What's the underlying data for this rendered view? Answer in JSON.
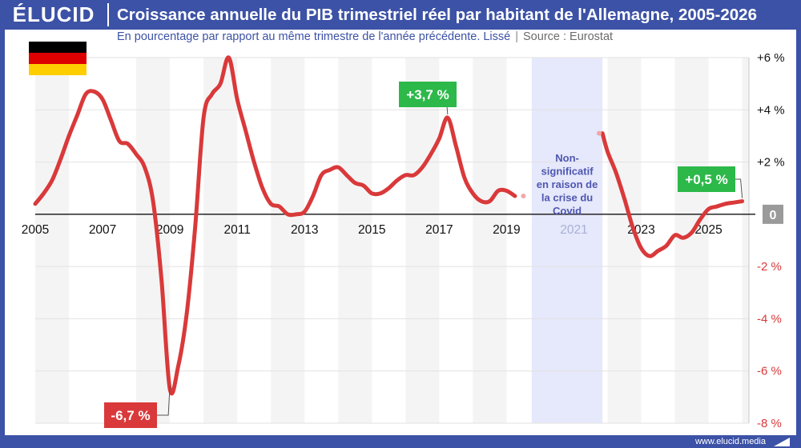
{
  "header": {
    "logo": "ÉLUCID",
    "title": "Croissance annuelle du PIB trimestriel réel par habitant de l'Allemagne, 2005-2026",
    "subtitle": "En pourcentage par rapport au même trimestre de l'année précédente. Lissé",
    "separator": "|",
    "source": "Source : Eurostat"
  },
  "flag": {
    "colors": [
      "#000000",
      "#dd0000",
      "#ffce00"
    ]
  },
  "footer": {
    "url": "www.elucid.media"
  },
  "colors": {
    "line": "#d9393a",
    "positive_label": "#2db84a",
    "negative_label": "#d9393a",
    "zero_label": "#9a9a9a",
    "covid_band": "#e6e8fb",
    "brand": "#3c52a6"
  },
  "chart_data": {
    "type": "line",
    "title": "Croissance annuelle du PIB trimestriel réel par habitant de l'Allemagne, 2005-2026",
    "xlabel": "",
    "ylabel": "",
    "xlim": [
      2005.0,
      2026.2
    ],
    "ylim": [
      -8,
      6
    ],
    "x_ticks": [
      "2005",
      "2007",
      "2009",
      "2011",
      "2013",
      "2015",
      "2017",
      "2019",
      "2021",
      "2023",
      "2025"
    ],
    "y_ticks": [
      {
        "value": 6,
        "label": "+6 %"
      },
      {
        "value": 4,
        "label": "+4 %"
      },
      {
        "value": 2,
        "label": "+2 %"
      },
      {
        "value": 0,
        "label": "0"
      },
      {
        "value": -2,
        "label": "-2 %"
      },
      {
        "value": -4,
        "label": "-4 %"
      },
      {
        "value": -6,
        "label": "-6 %"
      },
      {
        "value": -8,
        "label": "-8 %"
      }
    ],
    "grid": true,
    "alternating_year_bands": true,
    "series": [
      {
        "segments": [
          [
            [
              2005.0,
              0.4
            ],
            [
              2005.25,
              0.8
            ],
            [
              2005.5,
              1.3
            ],
            [
              2005.75,
              2.1
            ],
            [
              2006.0,
              3.0
            ],
            [
              2006.25,
              3.8
            ],
            [
              2006.5,
              4.6
            ],
            [
              2006.75,
              4.7
            ],
            [
              2007.0,
              4.4
            ],
            [
              2007.25,
              3.6
            ],
            [
              2007.5,
              2.8
            ],
            [
              2007.75,
              2.7
            ],
            [
              2008.0,
              2.3
            ],
            [
              2008.25,
              1.8
            ],
            [
              2008.5,
              0.5
            ],
            [
              2008.75,
              -2.5
            ],
            [
              2009.0,
              -6.7
            ],
            [
              2009.25,
              -5.8
            ],
            [
              2009.5,
              -3.8
            ],
            [
              2009.75,
              -0.5
            ],
            [
              2010.0,
              3.7
            ],
            [
              2010.25,
              4.6
            ],
            [
              2010.5,
              5.0
            ],
            [
              2010.75,
              6.0
            ],
            [
              2011.0,
              4.4
            ],
            [
              2011.25,
              3.2
            ],
            [
              2011.5,
              2.0
            ],
            [
              2011.75,
              1.0
            ],
            [
              2012.0,
              0.4
            ],
            [
              2012.25,
              0.3
            ],
            [
              2012.5,
              0.0
            ],
            [
              2012.75,
              0.0
            ],
            [
              2013.0,
              0.1
            ],
            [
              2013.25,
              0.7
            ],
            [
              2013.5,
              1.5
            ],
            [
              2013.75,
              1.7
            ],
            [
              2014.0,
              1.8
            ],
            [
              2014.25,
              1.5
            ],
            [
              2014.5,
              1.2
            ],
            [
              2014.75,
              1.1
            ],
            [
              2015.0,
              0.8
            ],
            [
              2015.25,
              0.8
            ],
            [
              2015.5,
              1.0
            ],
            [
              2015.75,
              1.3
            ],
            [
              2016.0,
              1.5
            ],
            [
              2016.25,
              1.5
            ],
            [
              2016.5,
              1.8
            ],
            [
              2016.75,
              2.3
            ],
            [
              2017.0,
              2.9
            ],
            [
              2017.25,
              3.7
            ],
            [
              2017.5,
              2.6
            ],
            [
              2017.75,
              1.4
            ],
            [
              2018.0,
              0.8
            ],
            [
              2018.25,
              0.5
            ],
            [
              2018.5,
              0.5
            ],
            [
              2018.75,
              0.9
            ],
            [
              2019.0,
              0.9
            ],
            [
              2019.25,
              0.7
            ]
          ],
          [
            [
              2021.85,
              3.1
            ],
            [
              2022.0,
              2.4
            ],
            [
              2022.25,
              1.6
            ],
            [
              2022.5,
              0.6
            ],
            [
              2022.75,
              -0.5
            ],
            [
              2023.0,
              -1.3
            ],
            [
              2023.25,
              -1.6
            ],
            [
              2023.5,
              -1.4
            ],
            [
              2023.75,
              -1.2
            ],
            [
              2024.0,
              -0.8
            ],
            [
              2024.25,
              -0.9
            ],
            [
              2024.5,
              -0.7
            ],
            [
              2024.75,
              -0.2
            ],
            [
              2025.0,
              0.2
            ],
            [
              2025.25,
              0.3
            ],
            [
              2025.5,
              0.4
            ],
            [
              2025.75,
              0.45
            ],
            [
              2026.0,
              0.5
            ]
          ]
        ]
      }
    ],
    "covid_band": {
      "x_start": 2019.75,
      "x_end": 2021.85,
      "label": "Non-significatif en raison de la crise du Covid"
    },
    "annotations": [
      {
        "x": 2017.25,
        "y": 3.7,
        "label": "+3,7 %",
        "kind": "positive"
      },
      {
        "x": 2009.0,
        "y": -6.7,
        "label": "-6,7 %",
        "kind": "negative"
      },
      {
        "x": 2026.0,
        "y": 0.5,
        "label": "+0,5 %",
        "kind": "positive"
      }
    ],
    "zero_label": "0"
  }
}
